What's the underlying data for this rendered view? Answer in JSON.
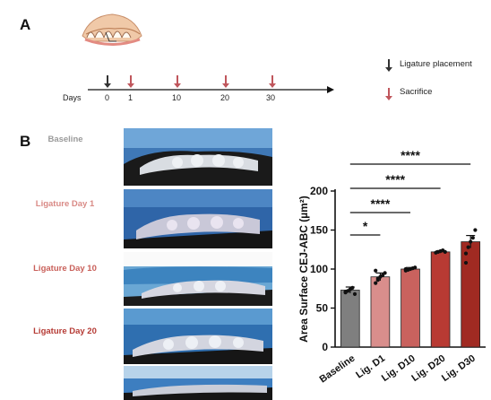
{
  "panel_a": {
    "letter": "A",
    "axis_label": "Days",
    "days": [
      "0",
      "1",
      "10",
      "20",
      "30"
    ],
    "legend": [
      {
        "label": "Ligature placement",
        "color": "#333333"
      },
      {
        "label": "Sacrifice",
        "color": "#c0565c"
      }
    ]
  },
  "panel_b": {
    "letter": "B",
    "rows": [
      {
        "label": "Baseline",
        "color": "#9a9a9a"
      },
      {
        "label": "Ligature Day 1",
        "color": "#d98a86"
      },
      {
        "label": "Ligature Day 10",
        "color": "#c9605a"
      },
      {
        "label": "Ligature Day 20",
        "color": "#b53a34"
      }
    ]
  },
  "chart_data": {
    "type": "bar",
    "ylabel": "Area Surface CEJ-ABC (µm²)",
    "categories": [
      "Baseline",
      "Lig. D1",
      "Lig. D10",
      "Lig. D20",
      "Lig. D30"
    ],
    "values": [
      73,
      90,
      100,
      122,
      135
    ],
    "errors": [
      4,
      5,
      2,
      1.5,
      8
    ],
    "colors": [
      "#7f7f7f",
      "#d98e8c",
      "#c9625e",
      "#b83a33",
      "#a02a22"
    ],
    "ylim": [
      0,
      200
    ],
    "yticks": [
      0,
      50,
      100,
      150,
      200
    ],
    "points": [
      [
        70,
        72,
        74,
        76,
        68,
        71
      ],
      [
        82,
        88,
        90,
        92,
        95,
        98,
        86
      ],
      [
        98,
        99,
        100,
        101,
        102,
        100
      ],
      [
        121,
        122,
        123,
        124,
        122
      ],
      [
        120,
        128,
        135,
        140,
        150,
        108
      ]
    ],
    "significance": [
      {
        "from": 0,
        "to": 1,
        "label": "*"
      },
      {
        "from": 0,
        "to": 2,
        "label": "****"
      },
      {
        "from": 0,
        "to": 3,
        "label": "****"
      },
      {
        "from": 0,
        "to": 4,
        "label": "****"
      }
    ]
  }
}
